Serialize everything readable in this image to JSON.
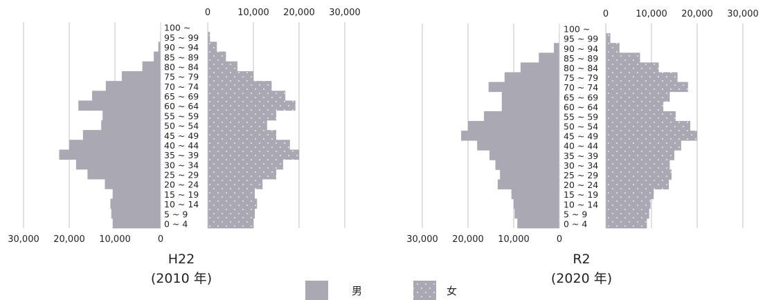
{
  "legend": {
    "male": {
      "label": "男",
      "color": "#a9a8b3"
    },
    "female": {
      "label": "女",
      "color": "#a9a8b3",
      "pattern": "white-dots"
    }
  },
  "chart_data": [
    {
      "type": "bar",
      "title": "H22",
      "subtitle": "(2010 年)",
      "female_axis_ticks": [
        "0",
        "10,000",
        "20,000",
        "30,000"
      ],
      "male_axis_ticks": [
        "30,000",
        "20,000",
        "10,000",
        "0"
      ],
      "xlim": [
        0,
        30000
      ],
      "grid": true,
      "categories": [
        "0 ~ 4",
        "5 ~ 9",
        "10 ~ 14",
        "15 ~ 19",
        "20 ~ 24",
        "25 ~ 29",
        "30 ~ 34",
        "35 ~ 39",
        "40 ~ 44",
        "45 ~ 49",
        "50 ~ 54",
        "55 ~ 59",
        "60 ~ 64",
        "65 ~ 69",
        "70 ~ 74",
        "75 ~ 79",
        "80 ~ 84",
        "85 ~ 89",
        "90 ~ 94",
        "95 ~ 99",
        "100 ~"
      ],
      "series": [
        {
          "name": "男",
          "values": [
            10500,
            10800,
            11000,
            10500,
            12200,
            16000,
            18500,
            22200,
            20000,
            17000,
            13000,
            12700,
            18000,
            15000,
            12000,
            8500,
            4000,
            1500,
            500,
            100,
            20
          ]
        },
        {
          "name": "女",
          "values": [
            10000,
            10300,
            10800,
            10300,
            12000,
            15000,
            16500,
            20000,
            18000,
            15000,
            13000,
            15000,
            19200,
            17000,
            14000,
            10000,
            6500,
            4000,
            2000,
            500,
            100
          ]
        }
      ]
    },
    {
      "type": "bar",
      "title": "R2",
      "subtitle": "(2020 年)",
      "female_axis_ticks": [
        "0",
        "10,000",
        "20,000",
        "30,000"
      ],
      "male_axis_ticks": [
        "30,000",
        "20,000",
        "10,000",
        "0"
      ],
      "xlim": [
        0,
        30000
      ],
      "grid": true,
      "categories": [
        "0 ~ 4",
        "5 ~ 9",
        "10 ~ 14",
        "15 ~ 19",
        "20 ~ 24",
        "25 ~ 29",
        "30 ~ 34",
        "35 ~ 39",
        "40 ~ 44",
        "45 ~ 49",
        "50 ~ 54",
        "55 ~ 59",
        "60 ~ 64",
        "65 ~ 69",
        "70 ~ 74",
        "75 ~ 79",
        "80 ~ 84",
        "85 ~ 89",
        "90 ~ 94",
        "95 ~ 99",
        "100 ~"
      ],
      "series": [
        {
          "name": "男",
          "values": [
            9200,
            9800,
            10000,
            10500,
            13500,
            13000,
            14000,
            15300,
            18000,
            21500,
            20000,
            16500,
            12600,
            12600,
            15500,
            12000,
            8500,
            4500,
            1200,
            100,
            20
          ]
        },
        {
          "name": "女",
          "values": [
            9000,
            9500,
            9800,
            10500,
            13800,
            14400,
            14000,
            15000,
            16500,
            20000,
            18500,
            15300,
            12600,
            14000,
            18000,
            15700,
            11600,
            7500,
            3000,
            1000,
            100
          ]
        }
      ]
    }
  ]
}
